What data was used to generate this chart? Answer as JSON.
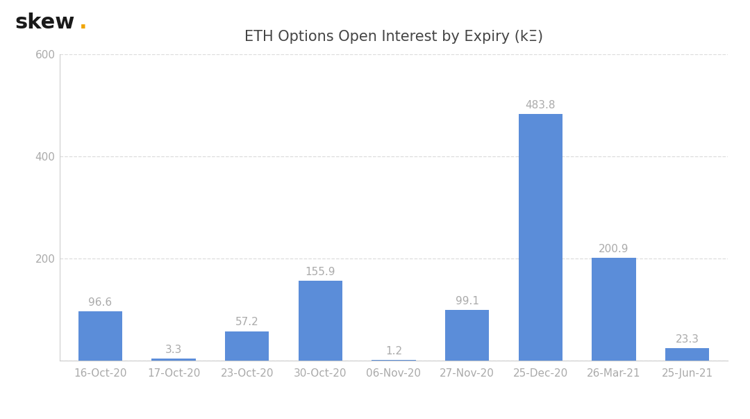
{
  "title": "ETH Options Open Interest by Expiry (kΞ)",
  "categories": [
    "16-Oct-20",
    "17-Oct-20",
    "23-Oct-20",
    "30-Oct-20",
    "06-Nov-20",
    "27-Nov-20",
    "25-Dec-20",
    "26-Mar-21",
    "25-Jun-21"
  ],
  "values": [
    96.6,
    3.3,
    57.2,
    155.9,
    1.2,
    99.1,
    483.8,
    200.9,
    23.3
  ],
  "bar_color": "#5b8dd9",
  "background_color": "#ffffff",
  "label_color": "#aaaaaa",
  "tick_color": "#aaaaaa",
  "spine_color": "#cccccc",
  "ylim": [
    0,
    600
  ],
  "yticks": [
    0,
    200,
    400,
    600
  ],
  "grid_color": "#dddddd",
  "title_fontsize": 15,
  "label_fontsize": 11,
  "tick_fontsize": 11,
  "skew_dot_color": "#f0a500",
  "bar_width": 0.6
}
